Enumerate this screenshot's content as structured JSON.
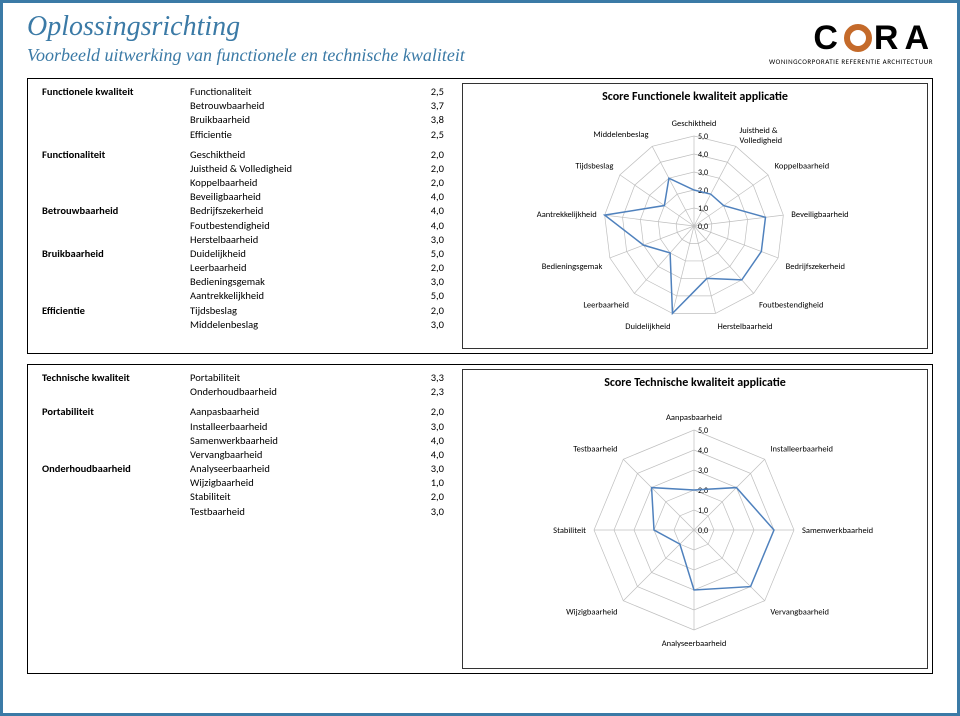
{
  "header": {
    "title": "Oplossingsrichting",
    "subtitle": "Voorbeeld uitwerking van functionele en technische kwaliteit",
    "logo_text": "C  RA",
    "logo_sub": "WONINGCORPORATIE REFERENTIE ARCHITECTUUR"
  },
  "section1": {
    "heading": "Functionele kwaliteit",
    "primary": [
      {
        "label": "Functionaliteit",
        "value": "2,5"
      },
      {
        "label": "Betrouwbaarheid",
        "value": "3,7"
      },
      {
        "label": "Bruikbaarheid",
        "value": "3,8"
      },
      {
        "label": "Efficientie",
        "value": "2,5"
      }
    ],
    "groups": [
      {
        "cat": "Functionaliteit",
        "rows": [
          {
            "label": "Geschiktheid",
            "value": "2,0"
          },
          {
            "label": "Juistheid & Volledigheid",
            "value": "2,0"
          },
          {
            "label": "Koppelbaarheid",
            "value": "2,0"
          },
          {
            "label": "Beveiligbaarheid",
            "value": "4,0"
          }
        ]
      },
      {
        "cat": "Betrouwbaarheid",
        "rows": [
          {
            "label": "Bedrijfszekerheid",
            "value": "4,0"
          },
          {
            "label": "Foutbestendigheid",
            "value": "4,0"
          },
          {
            "label": "Herstelbaarheid",
            "value": "3,0"
          }
        ]
      },
      {
        "cat": "Bruikbaarheid",
        "rows": [
          {
            "label": "Duidelijkheid",
            "value": "5,0"
          },
          {
            "label": "Leerbaarheid",
            "value": "2,0"
          },
          {
            "label": "Bedieningsgemak",
            "value": "3,0"
          },
          {
            "label": "Aantrekkelijkheid",
            "value": "5,0"
          }
        ]
      },
      {
        "cat": "Efficientie",
        "rows": [
          {
            "label": "Tijdsbeslag",
            "value": "2,0"
          },
          {
            "label": "Middelenbeslag",
            "value": "3,0"
          }
        ]
      }
    ]
  },
  "chart1": {
    "title": "Score Functionele kwaliteit applicatie",
    "type": "radar",
    "max": 5.0,
    "tick_step": 1.0,
    "ticks": [
      "0,0",
      "1,0",
      "2,0",
      "3,0",
      "4,0",
      "5,0"
    ],
    "grid_color": "#bfbfbf",
    "line_color": "#4f81bd",
    "line_width": 1.5,
    "fill_color": "#4f81bd",
    "fill_opacity": 0.0,
    "background": "#ffffff",
    "labels": [
      "Geschiktheid",
      "Juistheid & Volledigheid",
      "Koppelbaarheid",
      "Beveiligbaarheid",
      "Bedrijfszekerheid",
      "Foutbestendigheid",
      "Herstelbaarheid",
      "Duidelijkheid",
      "Leerbaarheid",
      "Bedieningsgemak",
      "Aantrekkelijkheid",
      "Tijdsbeslag",
      "Middelenbeslag"
    ],
    "values": [
      2.0,
      2.0,
      2.0,
      4.0,
      4.0,
      4.0,
      3.0,
      5.0,
      2.0,
      3.0,
      5.0,
      2.0,
      3.0
    ]
  },
  "section2": {
    "heading": "Technische kwaliteit",
    "primary": [
      {
        "label": "Portabiliteit",
        "value": "3,3"
      },
      {
        "label": "Onderhoudbaarheid",
        "value": "2,3"
      }
    ],
    "groups": [
      {
        "cat": "Portabiliteit",
        "rows": [
          {
            "label": "Aanpasbaarheid",
            "value": "2,0"
          },
          {
            "label": "Installeerbaarheid",
            "value": "3,0"
          },
          {
            "label": "Samenwerkbaarheid",
            "value": "4,0"
          },
          {
            "label": "Vervangbaarheid",
            "value": "4,0"
          }
        ]
      },
      {
        "cat": "Onderhoudbaarheid",
        "rows": [
          {
            "label": "Analyseerbaarheid",
            "value": "3,0"
          },
          {
            "label": "Wijzigbaarheid",
            "value": "1,0"
          },
          {
            "label": "Stabiliteit",
            "value": "2,0"
          },
          {
            "label": "Testbaarheid",
            "value": "3,0"
          }
        ]
      }
    ]
  },
  "chart2": {
    "title": "Score Technische kwaliteit applicatie",
    "type": "radar",
    "max": 5.0,
    "tick_step": 1.0,
    "ticks": [
      "0,0",
      "1,0",
      "2,0",
      "3,0",
      "4,0",
      "5,0"
    ],
    "grid_color": "#bfbfbf",
    "line_color": "#4f81bd",
    "line_width": 1.5,
    "fill_color": "#4f81bd",
    "fill_opacity": 0.0,
    "background": "#ffffff",
    "labels": [
      "Aanpasbaarheid",
      "Installeerbaarheid",
      "Samenwerkbaarheid",
      "Vervangbaarheid",
      "Analyseerbaarheid",
      "Wijzigbaarheid",
      "Stabiliteit",
      "Testbaarheid"
    ],
    "values": [
      2.0,
      3.0,
      4.0,
      4.0,
      3.0,
      1.0,
      2.0,
      3.0
    ]
  }
}
